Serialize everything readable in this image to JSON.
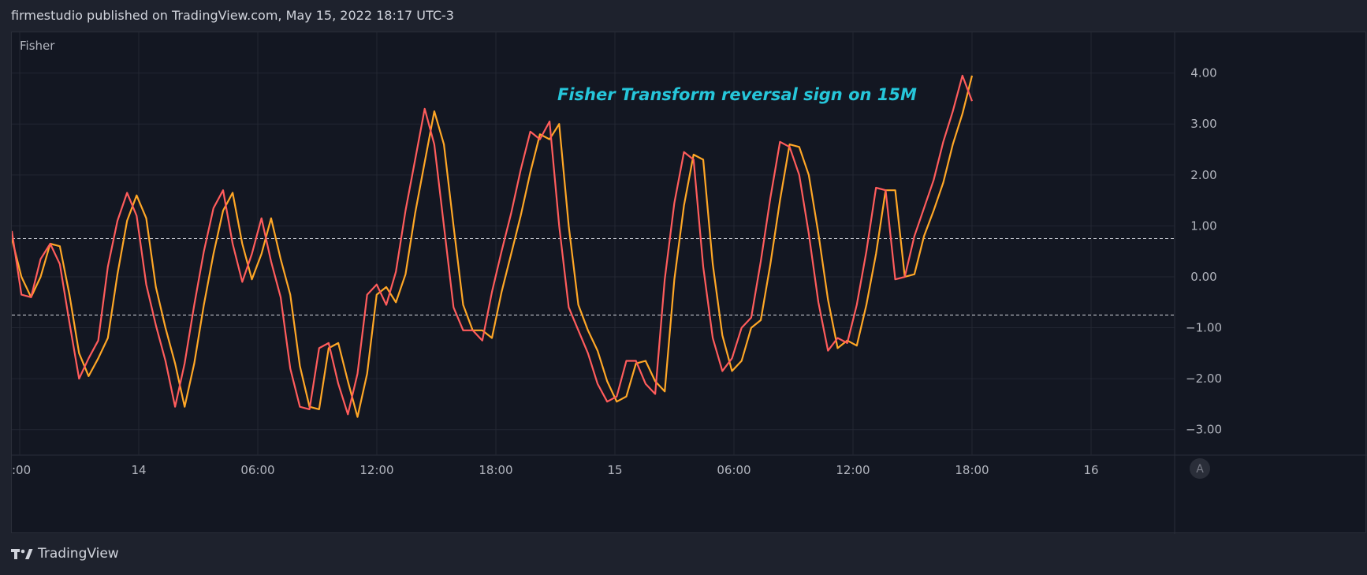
{
  "header": {
    "published": "firmestudio published on TradingView.com, May 15, 2022 18:17 UTC-3"
  },
  "footer": {
    "brand": "TradingView",
    "logo_icon": "tradingview-logo-icon"
  },
  "colors": {
    "background": "#131722",
    "frame": "#1e222d",
    "grid": "#232733",
    "axis_text": "#b2b5be",
    "fisher": "#ff5c5c",
    "trigger": "#ffa726",
    "annotation": "#26c6da",
    "level_line": "#d1d4dc"
  },
  "chart_data": {
    "type": "line",
    "indicator_label": "Fisher",
    "annotation": "Fisher Transform reversal sign on 15M",
    "x_tick_labels": [
      ":00",
      "14",
      "06:00",
      "12:00",
      "18:00",
      "15",
      "06:00",
      "12:00",
      "18:00",
      "16"
    ],
    "y_tick_labels": [
      "4.00",
      "3.00",
      "2.00",
      "1.00",
      "0.00",
      "−1.00",
      "−2.00",
      "−3.00"
    ],
    "y_ticks": [
      4,
      3,
      2,
      1,
      0,
      -1,
      -2,
      -3
    ],
    "ylim": [
      -3.5,
      4.8
    ],
    "levels": [
      0.75,
      -0.75
    ],
    "scale_button": "A",
    "series": [
      {
        "role": "fisher",
        "values": [
          0.9,
          -0.35,
          -0.4,
          0.35,
          0.65,
          0.25,
          -0.9,
          -2.0,
          -1.6,
          -1.25,
          0.2,
          1.1,
          1.65,
          1.2,
          -0.15,
          -0.95,
          -1.65,
          -2.55,
          -1.7,
          -0.55,
          0.5,
          1.35,
          1.7,
          0.65,
          -0.1,
          0.45,
          1.15,
          0.3,
          -0.4,
          -1.8,
          -2.55,
          -2.6,
          -1.4,
          -1.3,
          -2.1,
          -2.7,
          -1.9,
          -0.35,
          -0.15,
          -0.55,
          0.1,
          1.3,
          2.3,
          3.3,
          2.6,
          1.0,
          -0.6,
          -1.05,
          -1.05,
          -1.25,
          -0.3,
          0.5,
          1.25,
          2.1,
          2.85,
          2.7,
          3.05,
          1.0,
          -0.6,
          -1.05,
          -1.5,
          -2.1,
          -2.45,
          -2.35,
          -1.65,
          -1.65,
          -2.1,
          -2.3,
          -0.05,
          1.45,
          2.45,
          2.3,
          0.2,
          -1.2,
          -1.85,
          -1.6,
          -1.0,
          -0.8,
          0.3,
          1.55,
          2.65,
          2.55,
          2.0,
          0.85,
          -0.5,
          -1.45,
          -1.2,
          -1.3,
          -0.55,
          0.5,
          1.75,
          1.7,
          -0.05,
          0.0,
          0.8,
          1.35,
          1.9,
          2.65,
          3.25,
          3.95,
          3.45
        ]
      },
      {
        "role": "trigger",
        "values": [
          0.75,
          0.0,
          -0.4,
          0.0,
          0.65,
          0.6,
          -0.35,
          -1.5,
          -1.95,
          -1.6,
          -1.2,
          0.05,
          1.1,
          1.6,
          1.15,
          -0.2,
          -1.0,
          -1.7,
          -2.55,
          -1.7,
          -0.55,
          0.45,
          1.3,
          1.65,
          0.65,
          -0.05,
          0.45,
          1.15,
          0.35,
          -0.35,
          -1.75,
          -2.55,
          -2.6,
          -1.4,
          -1.3,
          -2.05,
          -2.75,
          -1.9,
          -0.35,
          -0.2,
          -0.5,
          0.05,
          1.25,
          2.25,
          3.25,
          2.6,
          1.0,
          -0.55,
          -1.05,
          -1.05,
          -1.2,
          -0.3,
          0.45,
          1.2,
          2.05,
          2.8,
          2.7,
          3.0,
          1.0,
          -0.55,
          -1.05,
          -1.45,
          -2.05,
          -2.45,
          -2.35,
          -1.7,
          -1.65,
          -2.05,
          -2.25,
          -0.05,
          1.4,
          2.4,
          2.3,
          0.25,
          -1.15,
          -1.85,
          -1.65,
          -1.0,
          -0.85,
          0.25,
          1.5,
          2.6,
          2.55,
          2.0,
          0.85,
          -0.45,
          -1.4,
          -1.25,
          -1.35,
          -0.55,
          0.45,
          1.7,
          1.7,
          0.0,
          0.05,
          0.8,
          1.3,
          1.85,
          2.6,
          3.2,
          3.95
        ]
      }
    ]
  }
}
